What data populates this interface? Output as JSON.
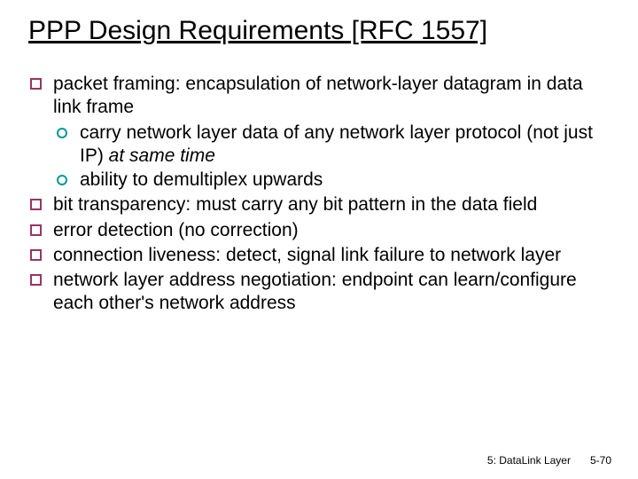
{
  "title": "PPP Design Requirements [RFC 1557]",
  "bullets": {
    "b0_lead": "packet framing:",
    "b0_rest": " encapsulation of network-layer datagram in data link frame",
    "b0_s0_a": "carry network layer data of any network layer protocol (not just IP) ",
    "b0_s0_b": "at same time",
    "b0_s1": "ability to demultiplex upwards",
    "b1_lead": "bit transparency:",
    "b1_rest": " must carry any bit pattern in the data field",
    "b2_lead": "error detection",
    "b2_rest": " (no correction)",
    "b3_lead": "connection liveness:",
    "b3_rest": " detect, signal link failure to network layer",
    "b4_lead": "network layer address negotiation:",
    "b4_rest": " endpoint can learn/configure each other's network address"
  },
  "footer": {
    "left": "5: DataLink Layer",
    "right": "5-70"
  },
  "colors": {
    "square_border": "#993366",
    "circle_border": "#009999",
    "text": "#000000",
    "background": "#ffffff"
  },
  "typography": {
    "title_fontsize": 30,
    "body_fontsize": 21,
    "footer_fontsize": 12,
    "font_family": "Trebuchet MS / Gill Sans"
  }
}
